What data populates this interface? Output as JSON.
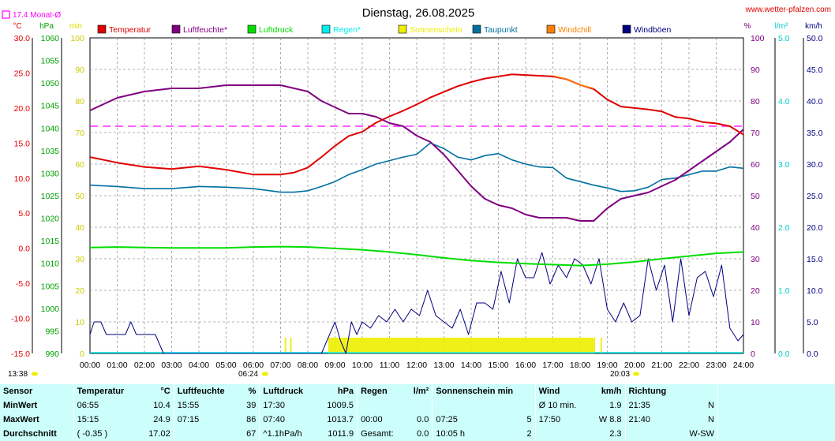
{
  "title": "Dienstag, 26.08.2025",
  "site": "www.wetter-pfalzen.com",
  "monat_label": "17.4 Monat-Ø",
  "units_left": [
    "°C",
    "hPa",
    "min"
  ],
  "units_right": [
    "%",
    "l/m²",
    "km/h"
  ],
  "sunrise": "06:24",
  "sunset": "20:03",
  "time_now": "13:38",
  "legend": [
    {
      "label": "Temperatur",
      "color": "#e00000"
    },
    {
      "label": "Luftfeuchte*",
      "color": "#800080"
    },
    {
      "label": "Luftdruck",
      "color": "#00dd00"
    },
    {
      "label": "Regen*",
      "color": "#00eeee"
    },
    {
      "label": "Sonnenschein",
      "color": "#eeee00"
    },
    {
      "label": "Taupunkt",
      "color": "#0070a0"
    },
    {
      "label": "Windchill",
      "color": "#ff8000"
    },
    {
      "label": "Windböen",
      "color": "#000080"
    }
  ],
  "axes": {
    "temp": {
      "label": "°C",
      "range": [
        -15,
        30
      ],
      "ticks": [
        "30.0",
        "25.0",
        "20.0",
        "15.0",
        "10.0",
        "5.0",
        "0.0",
        "-5.0",
        "-10.0",
        "-15.0"
      ]
    },
    "hpa": {
      "label": "hPa",
      "range": [
        990,
        1060
      ],
      "ticks": [
        "1060",
        "1055",
        "1050",
        "1045",
        "1040",
        "1035",
        "1030",
        "1025",
        "1020",
        "1015",
        "1010",
        "1005",
        "1000",
        "995",
        "990"
      ]
    },
    "min": {
      "label": "min",
      "range": [
        0,
        100
      ],
      "ticks": [
        "100",
        "90",
        "80",
        "70",
        "60",
        "50",
        "40",
        "30",
        "20",
        "10",
        "0"
      ]
    },
    "pct": {
      "label": "%",
      "range": [
        0,
        100
      ],
      "ticks": [
        "100",
        "90",
        "80",
        "70",
        "60",
        "50",
        "40",
        "30",
        "20",
        "10",
        "0"
      ]
    },
    "lm2": {
      "label": "l/m²",
      "range": [
        0,
        5
      ],
      "ticks": [
        "5.0",
        "4.0",
        "3.0",
        "2.0",
        "1.0",
        "0.0"
      ]
    },
    "kmh": {
      "label": "km/h",
      "range": [
        0,
        50
      ],
      "ticks": [
        "50.0",
        "45.0",
        "40.0",
        "35.0",
        "30.0",
        "25.0",
        "20.0",
        "15.0",
        "10.0",
        "5.0",
        "0.0"
      ]
    },
    "x_ticks": [
      "00:00",
      "01:00",
      "02:00",
      "03:00",
      "04:00",
      "05:00",
      "06:00",
      "07:00",
      "08:00",
      "09:00",
      "10:00",
      "11:00",
      "12:00",
      "13:00",
      "14:00",
      "15:00",
      "16:00",
      "17:00",
      "18:00",
      "19:00",
      "20:00",
      "21:00",
      "22:00",
      "23:00",
      "24:00"
    ]
  },
  "chart_data": {
    "type": "line",
    "title": "Dienstag, 26.08.2025",
    "x_unit": "hour",
    "x_range": [
      0,
      24
    ],
    "month_average_temp": 17.4,
    "series": [
      {
        "name": "Temperatur",
        "unit": "°C",
        "x": [
          0,
          1,
          2,
          3,
          4,
          5,
          6,
          7,
          7.5,
          8,
          8.5,
          9,
          9.5,
          10,
          10.5,
          11,
          11.5,
          12,
          12.5,
          13,
          13.5,
          14,
          14.5,
          15,
          15.5,
          16,
          16.5,
          17,
          17.5,
          18,
          18.5,
          19,
          19.5,
          20,
          20.5,
          21,
          21.5,
          22,
          22.5,
          23,
          23.5,
          24
        ],
        "y": [
          13.0,
          12.2,
          11.6,
          11.3,
          11.7,
          11.2,
          10.5,
          10.5,
          10.8,
          11.5,
          13.0,
          14.6,
          16.0,
          16.6,
          17.9,
          18.8,
          19.6,
          20.5,
          21.5,
          22.3,
          23.1,
          23.7,
          24.2,
          24.5,
          24.8,
          24.7,
          24.6,
          24.5,
          24.1,
          23.3,
          22.7,
          21.2,
          20.2,
          20.0,
          19.8,
          19.5,
          18.7,
          18.5,
          18.0,
          17.8,
          17.4,
          16.2
        ]
      },
      {
        "name": "Luftfeuchte*",
        "unit": "%",
        "x": [
          0,
          0.5,
          1,
          1.5,
          2,
          3,
          4,
          5,
          6,
          7,
          7.5,
          8,
          8.5,
          9,
          9.5,
          10,
          10.5,
          11,
          11.5,
          12,
          12.5,
          13,
          13.5,
          14,
          14.5,
          15,
          15.5,
          16,
          16.5,
          17,
          17.5,
          18,
          18.5,
          19,
          19.5,
          20,
          20.5,
          21,
          21.5,
          22,
          22.5,
          23,
          23.5,
          24
        ],
        "y": [
          77,
          79,
          81,
          82,
          83,
          84,
          84,
          85,
          85,
          85,
          84,
          83,
          80,
          78,
          76,
          76,
          75,
          73,
          72,
          69,
          67,
          63,
          58,
          53,
          49,
          47,
          46,
          44,
          43,
          43,
          43,
          42,
          42,
          46,
          49,
          50,
          51,
          53,
          55,
          58,
          61,
          64,
          67,
          71
        ]
      },
      {
        "name": "Luftdruck",
        "unit": "hPa",
        "x": [
          0,
          1,
          2,
          3,
          4,
          5,
          6,
          7,
          8,
          9,
          10,
          11,
          12,
          13,
          14,
          15,
          16,
          17,
          18,
          19,
          20,
          21,
          22,
          23,
          24
        ],
        "y": [
          1013.5,
          1013.6,
          1013.5,
          1013.4,
          1013.4,
          1013.4,
          1013.6,
          1013.7,
          1013.6,
          1013.3,
          1013.0,
          1012.5,
          1011.9,
          1011.2,
          1010.6,
          1010.2,
          1009.9,
          1009.7,
          1009.5,
          1009.8,
          1010.3,
          1011.0,
          1011.6,
          1012.2,
          1012.5
        ]
      },
      {
        "name": "Taupunkt",
        "unit": "°C",
        "x": [
          0,
          1,
          2,
          3,
          4,
          5,
          6,
          7,
          7.5,
          8,
          8.5,
          9,
          9.5,
          10,
          10.5,
          11,
          11.5,
          12,
          12.5,
          13,
          13.5,
          14,
          14.5,
          15,
          15.5,
          16,
          16.5,
          17,
          17.5,
          18,
          18.5,
          19,
          19.5,
          20,
          20.5,
          21,
          21.5,
          22,
          22.5,
          23,
          23.5,
          24
        ],
        "y": [
          9.0,
          8.8,
          8.5,
          8.5,
          8.8,
          8.7,
          8.5,
          8.0,
          8.0,
          8.2,
          8.8,
          9.5,
          10.5,
          11.2,
          12.0,
          12.5,
          13.0,
          13.4,
          15.0,
          14.2,
          13.0,
          12.6,
          13.2,
          13.5,
          12.6,
          12.0,
          11.6,
          11.5,
          10.0,
          9.5,
          9.0,
          8.6,
          8.1,
          8.2,
          8.7,
          9.8,
          10.0,
          10.5,
          11.0,
          11.0,
          11.6,
          11.4
        ]
      },
      {
        "name": "Windchill",
        "unit": "°C",
        "x": [
          17,
          17.5,
          18,
          18.5
        ],
        "y": [
          24.6,
          24.1,
          23.3,
          22.8
        ]
      },
      {
        "name": "Windböen",
        "unit": "km/h",
        "x": [
          0,
          0.15,
          0.4,
          0.6,
          0.8,
          1.1,
          1.3,
          1.5,
          1.7,
          1.9,
          2.1,
          2.4,
          2.7,
          3,
          4,
          5,
          6,
          7,
          8,
          8.5,
          8.8,
          9.0,
          9.2,
          9.4,
          9.6,
          9.8,
          10,
          10.3,
          10.6,
          10.9,
          11.2,
          11.5,
          11.8,
          12.1,
          12.4,
          12.7,
          13,
          13.3,
          13.6,
          13.9,
          14.2,
          14.5,
          14.8,
          15.1,
          15.4,
          15.7,
          16,
          16.3,
          16.6,
          16.9,
          17.2,
          17.5,
          17.8,
          18.1,
          18.4,
          18.7,
          19.0,
          19.3,
          19.6,
          19.9,
          20.2,
          20.5,
          20.8,
          21.1,
          21.4,
          21.7,
          22.0,
          22.3,
          22.6,
          22.9,
          23.2,
          23.5,
          23.8,
          24
        ],
        "y": [
          3,
          5,
          5,
          3,
          3,
          3,
          3,
          5,
          3,
          3,
          3,
          3,
          0,
          0,
          0,
          0,
          0,
          0,
          0,
          0,
          3,
          5,
          2,
          0,
          5,
          3,
          5,
          4,
          6,
          5,
          7,
          5,
          7,
          6,
          10,
          6,
          5,
          4,
          7,
          3,
          8,
          8,
          7,
          13,
          8,
          15,
          12,
          12,
          16,
          11,
          14,
          12,
          15,
          14,
          11,
          15,
          7,
          5,
          8,
          5,
          6,
          15,
          10,
          14,
          5,
          15,
          6,
          12,
          13,
          9,
          14,
          4,
          2,
          3
        ]
      }
    ],
    "sunshine_intervals": [
      [
        7.15,
        7.2
      ],
      [
        7.35,
        7.4
      ],
      [
        8.75,
        18.55
      ],
      [
        18.75,
        18.8
      ]
    ]
  },
  "summary": {
    "headers": {
      "sensor": "Sensor",
      "temp": "Temperatur",
      "temp_u": "°C",
      "hum": "Luftfeuchte",
      "hum_u": "%",
      "press": "Luftdruck",
      "press_u": "hPa",
      "rain": "Regen",
      "rain_u": "l/m²",
      "sun": "Sonnenschein min",
      "wind": "Wind",
      "wind_u": "km/h",
      "dir": "Richtung"
    },
    "rows": [
      {
        "label": "MinWert",
        "t_time": "06:55",
        "t_val": "10.4",
        "h_time": "15:55",
        "h_val": "39",
        "p_time": "17:30",
        "p_val": "1009.5",
        "r_time": "",
        "r_val": "",
        "s_time": "",
        "s_val": "",
        "w_time": "Ø 10 min.",
        "w_val": "1.9",
        "d_time": "21:35",
        "d_val": "N"
      },
      {
        "label": "MaxWert",
        "t_time": "15:15",
        "t_val": "24.9",
        "h_time": "07:15",
        "h_val": "86",
        "p_time": "07:40",
        "p_val": "1013.7",
        "r_time": "00:00",
        "r_val": "0.0",
        "s_time": "07:25",
        "s_val": "5",
        "w_time": "17:50",
        "w_val": "W 8.8",
        "d_time": "21:40",
        "d_val": "N"
      },
      {
        "label": "Durchschnitt",
        "t_time": "( -0.35 )",
        "t_val": "17.02",
        "h_time": "",
        "h_val": "67",
        "p_time": "^1.1hPa/h",
        "p_val": "1011.9",
        "r_time": "Gesamt:",
        "r_val": "0.0",
        "s_time": "10:05 h",
        "s_val": "2",
        "w_time": "",
        "w_val": "2.3",
        "d_time": "",
        "d_val": "W-SW"
      }
    ]
  }
}
